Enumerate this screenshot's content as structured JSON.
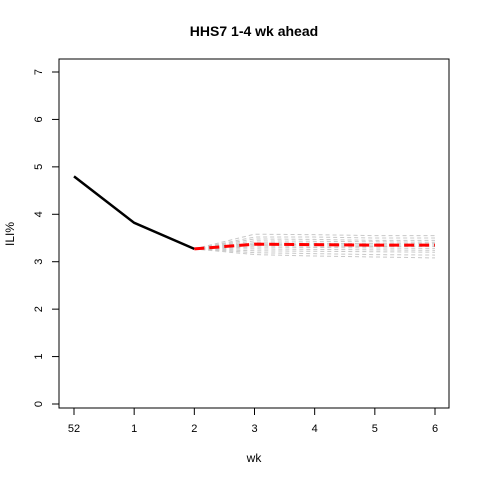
{
  "chart_data": {
    "type": "line",
    "title": "HHS7 1-4 wk ahead",
    "xlabel": "wk",
    "ylabel": "ILI%",
    "x_tick_labels": [
      "52",
      "1",
      "2",
      "3",
      "4",
      "5",
      "6"
    ],
    "xlim": [
      0,
      6
    ],
    "ylim": [
      0,
      7
    ],
    "y_ticks": [
      0,
      1,
      2,
      3,
      4,
      5,
      6,
      7
    ],
    "grid": false,
    "observed": {
      "color": "#000000",
      "x": [
        0,
        1,
        2
      ],
      "y": [
        4.8,
        3.82,
        3.27
      ]
    },
    "forecast_mean": {
      "color": "#ff0000",
      "x": [
        2,
        3,
        4,
        5,
        6
      ],
      "y": [
        3.27,
        3.37,
        3.36,
        3.35,
        3.35
      ]
    },
    "forecast_samples": {
      "color": "#c8c8c8",
      "x": [
        2,
        3,
        4,
        5,
        6
      ],
      "lines": [
        [
          3.27,
          3.58,
          3.57,
          3.55,
          3.55
        ],
        [
          3.27,
          3.52,
          3.52,
          3.5,
          3.5
        ],
        [
          3.27,
          3.48,
          3.47,
          3.45,
          3.45
        ],
        [
          3.27,
          3.44,
          3.43,
          3.42,
          3.41
        ],
        [
          3.27,
          3.4,
          3.39,
          3.38,
          3.38
        ],
        [
          3.27,
          3.37,
          3.36,
          3.35,
          3.35
        ],
        [
          3.27,
          3.34,
          3.33,
          3.32,
          3.32
        ],
        [
          3.27,
          3.31,
          3.3,
          3.29,
          3.28
        ],
        [
          3.27,
          3.27,
          3.26,
          3.25,
          3.24
        ],
        [
          3.27,
          3.23,
          3.22,
          3.21,
          3.2
        ],
        [
          3.27,
          3.19,
          3.17,
          3.15,
          3.14
        ],
        [
          3.27,
          3.15,
          3.12,
          3.1,
          3.08
        ]
      ]
    }
  }
}
